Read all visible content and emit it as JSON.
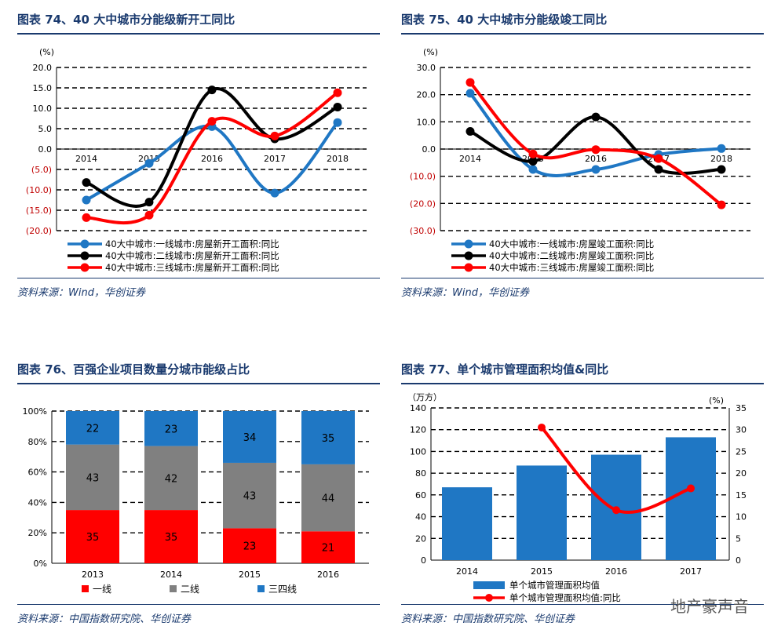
{
  "chart_data": [
    {
      "id": "fig74",
      "type": "line",
      "title": "图表 74、40 大中城市分能级新开工同比",
      "ylabel": "(%)",
      "ylim": [
        -20,
        20
      ],
      "yticks": [
        "20.0",
        "15.0",
        "10.0",
        "5.0",
        "0.0",
        "(5.0)",
        "(10.0)",
        "(15.0)",
        "(20.0)"
      ],
      "categories": [
        "2014",
        "2015",
        "2016",
        "2017",
        "2018"
      ],
      "series": [
        {
          "name": "40大中城市:一线城市:房屋新开工面积:同比",
          "color": "#1f77c4",
          "values": [
            -12.5,
            -3.5,
            5.5,
            -10.8,
            6.5
          ]
        },
        {
          "name": "40大中城市:二线城市:房屋新开工面积:同比",
          "color": "#000000",
          "values": [
            -8.2,
            -13.0,
            14.5,
            2.5,
            10.3
          ]
        },
        {
          "name": "40大中城市:三线城市:房屋新开工面积:同比",
          "color": "#ff0000",
          "values": [
            -16.8,
            -16.2,
            6.8,
            3.2,
            13.8
          ]
        }
      ],
      "source": "资料来源：Wind，华创证券"
    },
    {
      "id": "fig75",
      "type": "line",
      "title": "图表 75、40 大中城市分能级竣工同比",
      "ylabel": "(%)",
      "ylim": [
        -30,
        30
      ],
      "yticks": [
        "30.0",
        "20.0",
        "10.0",
        "0.0",
        "(10.0)",
        "(20.0)",
        "(30.0)"
      ],
      "categories": [
        "2014",
        "2015",
        "2016",
        "2017",
        "2018"
      ],
      "series": [
        {
          "name": "40大中城市:一线城市:房屋竣工面积:同比",
          "color": "#1f77c4",
          "values": [
            20.5,
            -7.5,
            -7.5,
            -2.0,
            0.2
          ]
        },
        {
          "name": "40大中城市:二线城市:房屋竣工面积:同比",
          "color": "#000000",
          "values": [
            6.5,
            -4.5,
            11.8,
            -7.5,
            -7.5
          ]
        },
        {
          "name": "40大中城市:三线城市:房屋竣工面积:同比",
          "color": "#ff0000",
          "values": [
            24.5,
            -1.8,
            -0.2,
            -3.5,
            -20.5
          ]
        }
      ],
      "source": "资料来源：Wind，华创证券"
    },
    {
      "id": "fig76",
      "type": "bar",
      "stacked": true,
      "title": "图表 76、百强企业项目数量分城市能级占比",
      "ylim": [
        0,
        100
      ],
      "yticks": [
        "100%",
        "80%",
        "60%",
        "40%",
        "20%",
        "0%"
      ],
      "categories": [
        "2013",
        "2014",
        "2015",
        "2016"
      ],
      "series": [
        {
          "name": "一线",
          "color": "#ff0000",
          "values": [
            35,
            35,
            23,
            21
          ]
        },
        {
          "name": "二线",
          "color": "#808080",
          "values": [
            43,
            42,
            43,
            44
          ]
        },
        {
          "name": "三四线",
          "color": "#1f77c4",
          "values": [
            22,
            23,
            34,
            35
          ]
        }
      ],
      "source": "资料来源：中国指数研究院、华创证券"
    },
    {
      "id": "fig77",
      "type": "bar",
      "title": "图表 77、单个城市管理面积均值&同比",
      "ylabel_left": "（万方）",
      "ylabel_right": "(%)",
      "ylim_left": [
        0,
        140
      ],
      "ylim_right": [
        0,
        35
      ],
      "yticks_left": [
        "140",
        "120",
        "100",
        "80",
        "60",
        "40",
        "20",
        "0"
      ],
      "yticks_right": [
        "35",
        "30",
        "25",
        "20",
        "15",
        "10",
        "5",
        "0"
      ],
      "categories": [
        "2014",
        "2015",
        "2016",
        "2017"
      ],
      "bar_series": {
        "name": "单个城市管理面积均值",
        "color": "#1f77c4",
        "values": [
          67,
          87,
          97,
          113
        ]
      },
      "line_series": {
        "name": "单个城市管理面积均值:同比",
        "color": "#ff0000",
        "values": [
          null,
          30.5,
          11.5,
          16.5
        ]
      },
      "source": "资料来源：中国指数研究院、华创证券"
    }
  ],
  "watermark": "地产豪声音"
}
